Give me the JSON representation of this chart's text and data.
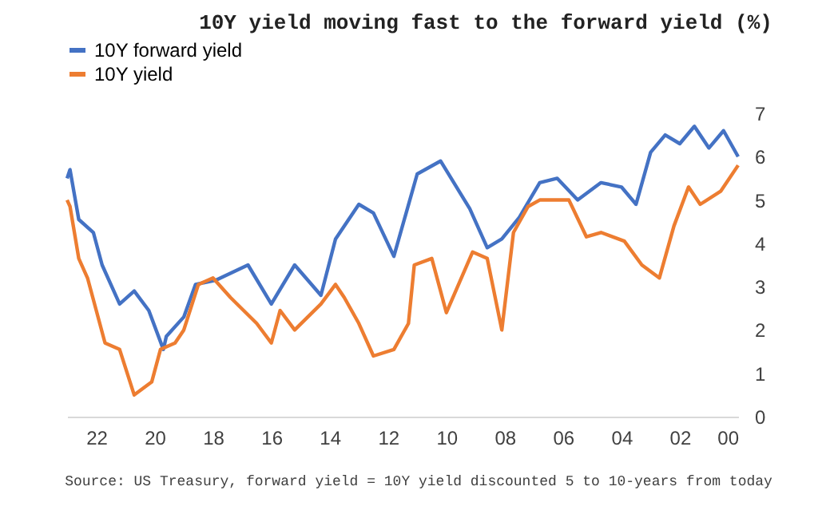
{
  "chart_data": {
    "type": "line",
    "title": "10Y yield moving fast to the forward yield (%)",
    "annotations": [
      "Source: US Treasury, forward yield = 10Y yield discounted 5 to 10-years from today"
    ],
    "xlim": [
      2023,
      2000
    ],
    "xticks": [
      {
        "value": 2000,
        "label": "00"
      },
      {
        "value": 2002,
        "label": "02"
      },
      {
        "value": 2004,
        "label": "04"
      },
      {
        "value": 2006,
        "label": "06"
      },
      {
        "value": 2008,
        "label": "08"
      },
      {
        "value": 2010,
        "label": "10"
      },
      {
        "value": 2012,
        "label": "12"
      },
      {
        "value": 2014,
        "label": "14"
      },
      {
        "value": 2016,
        "label": "16"
      },
      {
        "value": 2018,
        "label": "18"
      },
      {
        "value": 2020,
        "label": "20"
      },
      {
        "value": 2022,
        "label": "22"
      }
    ],
    "ylim": [
      0,
      7
    ],
    "yticks": [
      0,
      1,
      2,
      3,
      4,
      5,
      6,
      7
    ],
    "grid": false,
    "legend": "top",
    "series": [
      {
        "name": "10Y forward yield",
        "color": "#4472c4",
        "x": [
          2000,
          2000.5,
          2001,
          2001.5,
          2002,
          2002.5,
          2003,
          2003.5,
          2004,
          2004.7,
          2005.5,
          2006.2,
          2006.8,
          2007.5,
          2008.1,
          2008.6,
          2009.2,
          2010.2,
          2011,
          2011.8,
          2012.5,
          2013,
          2013.8,
          2014.3,
          2015.2,
          2016,
          2016.8,
          2017.9,
          2018.6,
          2019,
          2019.6,
          2019.7,
          2020.2,
          2020.7,
          2021.2,
          2021.8,
          2022.1,
          2022.6,
          2022.9,
          2023
        ],
        "values": [
          6.0,
          6.6,
          6.2,
          6.7,
          6.3,
          6.5,
          6.1,
          4.9,
          5.3,
          5.4,
          5.0,
          5.5,
          5.4,
          4.6,
          4.1,
          3.9,
          4.8,
          5.9,
          5.6,
          3.7,
          4.7,
          4.9,
          4.1,
          2.8,
          3.5,
          2.6,
          3.5,
          3.15,
          3.05,
          2.3,
          1.85,
          1.55,
          2.45,
          2.9,
          2.6,
          3.5,
          4.25,
          4.55,
          5.7,
          5.5
        ]
      },
      {
        "name": "10Y yield",
        "color": "#ed7d31",
        "x": [
          2000,
          2000.6,
          2001.3,
          2001.7,
          2002.2,
          2002.7,
          2003.3,
          2003.9,
          2004.7,
          2005.2,
          2005.8,
          2006.8,
          2007.2,
          2007.7,
          2008.1,
          2008.6,
          2009.1,
          2010,
          2010.5,
          2011.1,
          2011.3,
          2011.8,
          2012.5,
          2013,
          2013.5,
          2013.8,
          2014.3,
          2015.2,
          2015.7,
          2016,
          2016.5,
          2017.4,
          2018,
          2018.5,
          2019,
          2019.3,
          2019.8,
          2020.1,
          2020.7,
          2021.2,
          2021.7,
          2022,
          2022.3,
          2022.6,
          2022.9,
          2023
        ],
        "values": [
          5.8,
          5.2,
          4.9,
          5.3,
          4.4,
          3.2,
          3.5,
          4.05,
          4.25,
          4.15,
          5.0,
          5.0,
          4.85,
          4.25,
          2.0,
          3.65,
          3.8,
          2.4,
          3.65,
          3.5,
          2.15,
          1.55,
          1.4,
          2.15,
          2.75,
          3.05,
          2.6,
          2.0,
          2.45,
          1.7,
          2.15,
          2.75,
          3.2,
          3.05,
          2.0,
          1.7,
          1.55,
          0.8,
          0.5,
          1.55,
          1.7,
          2.45,
          3.2,
          3.65,
          4.85,
          5.0
        ]
      }
    ]
  }
}
